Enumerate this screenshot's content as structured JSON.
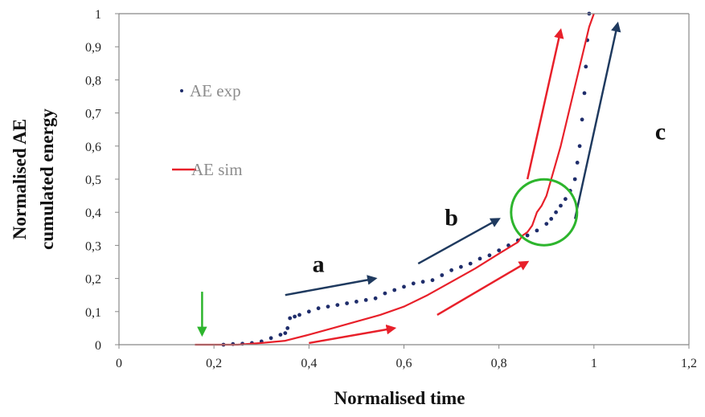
{
  "chart_data": {
    "type": "scatter",
    "xlabel": "Normalised time",
    "ylabel_lines": [
      "Normalised AE",
      "cumulated energy"
    ],
    "xlim": [
      0,
      1.2
    ],
    "ylim": [
      0,
      1
    ],
    "x_ticks": [
      "0",
      "0,2",
      "0,4",
      "0,6",
      "0,8",
      "1",
      "1,2"
    ],
    "y_ticks": [
      "0",
      "0,1",
      "0,2",
      "0,3",
      "0,4",
      "0,5",
      "0,6",
      "0,7",
      "0,8",
      "0,9",
      "1"
    ],
    "grid": false,
    "legend_position": "left",
    "series": [
      {
        "name": "AE exp",
        "style": "markers",
        "color": "#1f2d6b",
        "points": [
          [
            0.22,
            0.0
          ],
          [
            0.24,
            0.002
          ],
          [
            0.26,
            0.003
          ],
          [
            0.28,
            0.005
          ],
          [
            0.3,
            0.01
          ],
          [
            0.32,
            0.02
          ],
          [
            0.34,
            0.03
          ],
          [
            0.35,
            0.035
          ],
          [
            0.355,
            0.05
          ],
          [
            0.36,
            0.08
          ],
          [
            0.37,
            0.085
          ],
          [
            0.38,
            0.09
          ],
          [
            0.4,
            0.1
          ],
          [
            0.42,
            0.11
          ],
          [
            0.44,
            0.115
          ],
          [
            0.46,
            0.12
          ],
          [
            0.48,
            0.125
          ],
          [
            0.5,
            0.13
          ],
          [
            0.52,
            0.135
          ],
          [
            0.54,
            0.14
          ],
          [
            0.56,
            0.155
          ],
          [
            0.58,
            0.165
          ],
          [
            0.6,
            0.175
          ],
          [
            0.62,
            0.185
          ],
          [
            0.64,
            0.19
          ],
          [
            0.66,
            0.195
          ],
          [
            0.68,
            0.21
          ],
          [
            0.7,
            0.225
          ],
          [
            0.72,
            0.235
          ],
          [
            0.74,
            0.245
          ],
          [
            0.76,
            0.26
          ],
          [
            0.78,
            0.27
          ],
          [
            0.8,
            0.285
          ],
          [
            0.82,
            0.3
          ],
          [
            0.84,
            0.315
          ],
          [
            0.86,
            0.33
          ],
          [
            0.88,
            0.345
          ],
          [
            0.9,
            0.365
          ],
          [
            0.91,
            0.38
          ],
          [
            0.92,
            0.4
          ],
          [
            0.93,
            0.42
          ],
          [
            0.94,
            0.44
          ],
          [
            0.95,
            0.465
          ],
          [
            0.96,
            0.5
          ],
          [
            0.965,
            0.55
          ],
          [
            0.97,
            0.6
          ],
          [
            0.975,
            0.68
          ],
          [
            0.98,
            0.76
          ],
          [
            0.983,
            0.84
          ],
          [
            0.986,
            0.92
          ],
          [
            0.99,
            1.0
          ]
        ]
      },
      {
        "name": "AE sim",
        "style": "line",
        "color": "#e8202a",
        "points": [
          [
            0.16,
            0.0
          ],
          [
            0.25,
            0.0
          ],
          [
            0.3,
            0.005
          ],
          [
            0.35,
            0.012
          ],
          [
            0.4,
            0.03
          ],
          [
            0.45,
            0.05
          ],
          [
            0.5,
            0.07
          ],
          [
            0.55,
            0.09
          ],
          [
            0.6,
            0.115
          ],
          [
            0.65,
            0.15
          ],
          [
            0.7,
            0.19
          ],
          [
            0.75,
            0.23
          ],
          [
            0.8,
            0.275
          ],
          [
            0.84,
            0.31
          ],
          [
            0.85,
            0.33
          ],
          [
            0.86,
            0.34
          ],
          [
            0.87,
            0.36
          ],
          [
            0.875,
            0.38
          ],
          [
            0.88,
            0.4
          ],
          [
            0.89,
            0.42
          ],
          [
            0.9,
            0.45
          ],
          [
            0.91,
            0.5
          ],
          [
            0.92,
            0.55
          ],
          [
            0.93,
            0.6
          ],
          [
            0.94,
            0.66
          ],
          [
            0.95,
            0.72
          ],
          [
            0.96,
            0.78
          ],
          [
            0.97,
            0.84
          ],
          [
            0.98,
            0.9
          ],
          [
            0.99,
            0.96
          ],
          [
            1.0,
            1.0
          ]
        ]
      }
    ],
    "annotations": {
      "labels": [
        {
          "text": "a",
          "x": 0.42,
          "y": 0.22
        },
        {
          "text": "b",
          "x": 0.7,
          "y": 0.36
        },
        {
          "text": "c",
          "x": 1.14,
          "y": 0.62
        }
      ],
      "arrows": [
        {
          "color": "#1f3a5f",
          "x1": 0.35,
          "y1": 0.15,
          "x2": 0.54,
          "y2": 0.2
        },
        {
          "color": "#1f3a5f",
          "x1": 0.63,
          "y1": 0.245,
          "x2": 0.8,
          "y2": 0.38
        },
        {
          "color": "#1f3a5f",
          "x1": 0.96,
          "y1": 0.38,
          "x2": 1.05,
          "y2": 0.97
        },
        {
          "color": "#e8202a",
          "x1": 0.4,
          "y1": 0.005,
          "x2": 0.58,
          "y2": 0.05
        },
        {
          "color": "#e8202a",
          "x1": 0.67,
          "y1": 0.09,
          "x2": 0.86,
          "y2": 0.25
        },
        {
          "color": "#e8202a",
          "x1": 0.86,
          "y1": 0.5,
          "x2": 0.93,
          "y2": 0.95
        },
        {
          "color": "#2db52d",
          "x1": 0.175,
          "y1": 0.16,
          "x2": 0.175,
          "y2": 0.03
        }
      ],
      "circle": {
        "color": "#2db52d",
        "cx": 0.895,
        "cy": 0.4
      }
    }
  }
}
